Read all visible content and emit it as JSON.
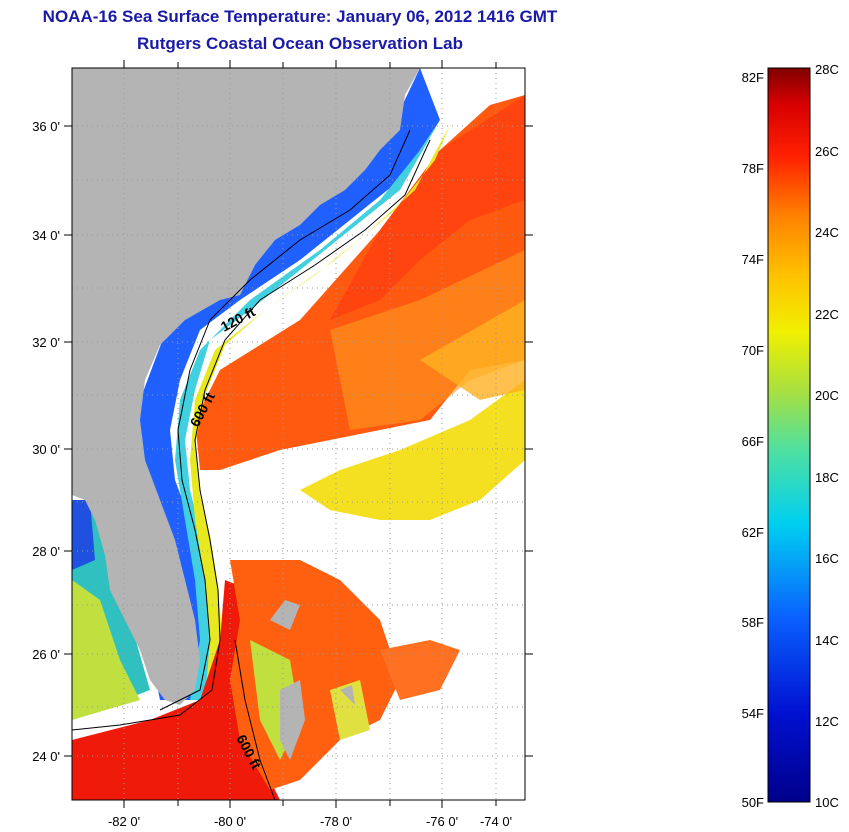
{
  "title": "NOAA-16 Sea Surface Temperature:  January 06, 2012 1416 GMT",
  "subtitle": "Rutgers Coastal Ocean Observation Lab",
  "map": {
    "lon_ticks": [
      "-82 0'",
      "-80 0'",
      "-78 0'",
      "-76 0'",
      "-74 0'"
    ],
    "lat_ticks": [
      "36 0'",
      "34 0'",
      "32 0'",
      "30 0'",
      "28 0'",
      "26 0'",
      "24 0'"
    ],
    "contours": [
      "120 ft",
      "600 ft",
      "600 ft"
    ],
    "colors": {
      "land": "#b4b4b4",
      "cloud": "#ffffff",
      "frame": "#000000"
    }
  },
  "colorbar": {
    "f_labels": [
      "82F",
      "78F",
      "74F",
      "70F",
      "66F",
      "62F",
      "58F",
      "54F",
      "50F"
    ],
    "c_labels": [
      "28C",
      "26C",
      "24C",
      "22C",
      "20C",
      "18C",
      "16C",
      "14C",
      "12C",
      "10C"
    ],
    "range_c": [
      10,
      28
    ],
    "range_f": [
      50,
      82
    ]
  }
}
